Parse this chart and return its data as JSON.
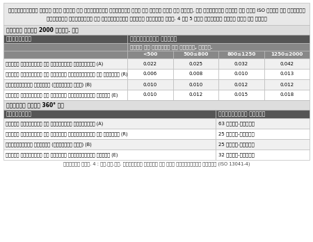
{
  "intro_line1": "कैलिब्रेशन करते समय लिखे गए निरीक्षण स्वीकार किए जा सकते हैं या नहीं, यह निश्चित करने के लिए ISO मानक के अनुसार",
  "intro_line2": "विभिन्न पैरामीटर के स्वीकार्य मूल्य तालिका क्र. 4 और 5 में संदर्भ हेतु दिए गए हैं।",
  "section1_title": "रेखीय अक्ष 2000 मिमी. तक",
  "param_header": "पैरामीटर",
  "acceptable_header": "स्वीकार्य मूल्य",
  "travel_header": "अक्ष की यात्रा की लंबाई, मिमी.",
  "sub_cols": [
    "<500",
    "500≤800",
    "800≤1250",
    "1250≤2000"
  ],
  "section1_rows": [
    [
      "स्थान निर्धारण की द्विदिशा अशुद्धता (A)",
      "0.022",
      "0.025",
      "0.032",
      "0.042"
    ],
    [
      "स्थान निर्धारण की एकदिशा पुनरावर्तन की क्षमता (R)",
      "0.006",
      "0.008",
      "0.010",
      "0.013"
    ],
    [
      "व्युत्क्रम त्रुटि (रिवर्सल एरर) (B)",
      "0.010",
      "0.010",
      "0.012",
      "0.012"
    ],
    [
      "स्थान निर्धारण का एकदिशा पद्धतिबद्ध विचलन (E)",
      "0.010",
      "0.012",
      "0.015",
      "0.018"
    ]
  ],
  "section2_title": "चक्रीय अक्ष 360° तक",
  "section2_rows": [
    [
      "स्थान निर्धारण की द्विदिशा अशुद्धता (A)",
      "63 आर्क-सेकंड"
    ],
    [
      "स्थान निर्धारण की एकदिशा पुनरावर्तन की क्षमता (R)",
      "25 आर्क-सेकंड"
    ],
    [
      "व्युत्क्रम त्रुटि (रिवर्सल एरर) (B)",
      "25 आर्क-सेकंड"
    ],
    [
      "स्थान निर्धारण का एकदिशा पद्धतिबद्ध विचलन (E)",
      "32 आर्क-सेकंड"
    ]
  ],
  "caption": "तालिका क्र. 4 : सी.एन.सी. टर्निंग सेंटर के लिए स्वीकार्य मूल्य (ISO 13041-4)",
  "header_bg": "#555555",
  "subheader_bg": "#888888",
  "section_title_bg": "#dddddd",
  "row_bg_light": "#f0f0f0",
  "row_bg_white": "#ffffff",
  "intro_bg": "#e8e8e8",
  "border_color": "#bbbbbb",
  "white": "#ffffff",
  "black": "#000000"
}
